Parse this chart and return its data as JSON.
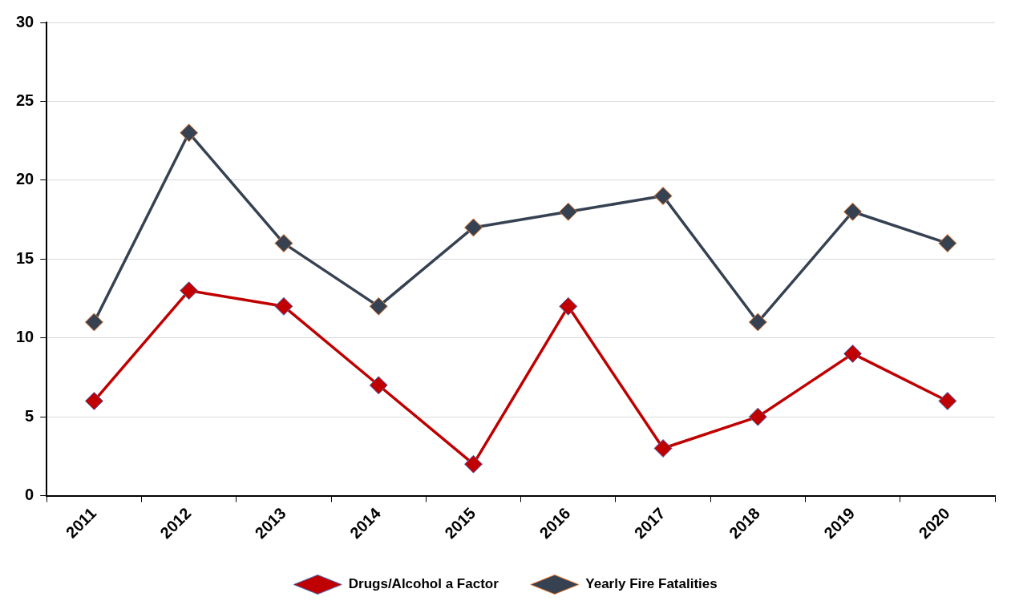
{
  "chart_data": {
    "type": "line",
    "categories": [
      "2011",
      "2012",
      "2013",
      "2014",
      "2015",
      "2016",
      "2017",
      "2018",
      "2019",
      "2020"
    ],
    "series": [
      {
        "name": "Drugs/Alcohol a Factor",
        "color": "#c00000",
        "values": [
          6,
          13,
          12,
          7,
          2,
          12,
          3,
          5,
          9,
          6
        ]
      },
      {
        "name": "Yearly Fire Fatalities",
        "color": "#364152",
        "values": [
          11,
          23,
          16,
          12,
          17,
          18,
          19,
          11,
          18,
          16
        ]
      }
    ],
    "ylim": [
      0,
      30
    ],
    "yticks": [
      0,
      5,
      10,
      15,
      20,
      25,
      30
    ],
    "grid": "y",
    "legend": "bottom",
    "marker": "diamond",
    "line_style": "solid"
  }
}
